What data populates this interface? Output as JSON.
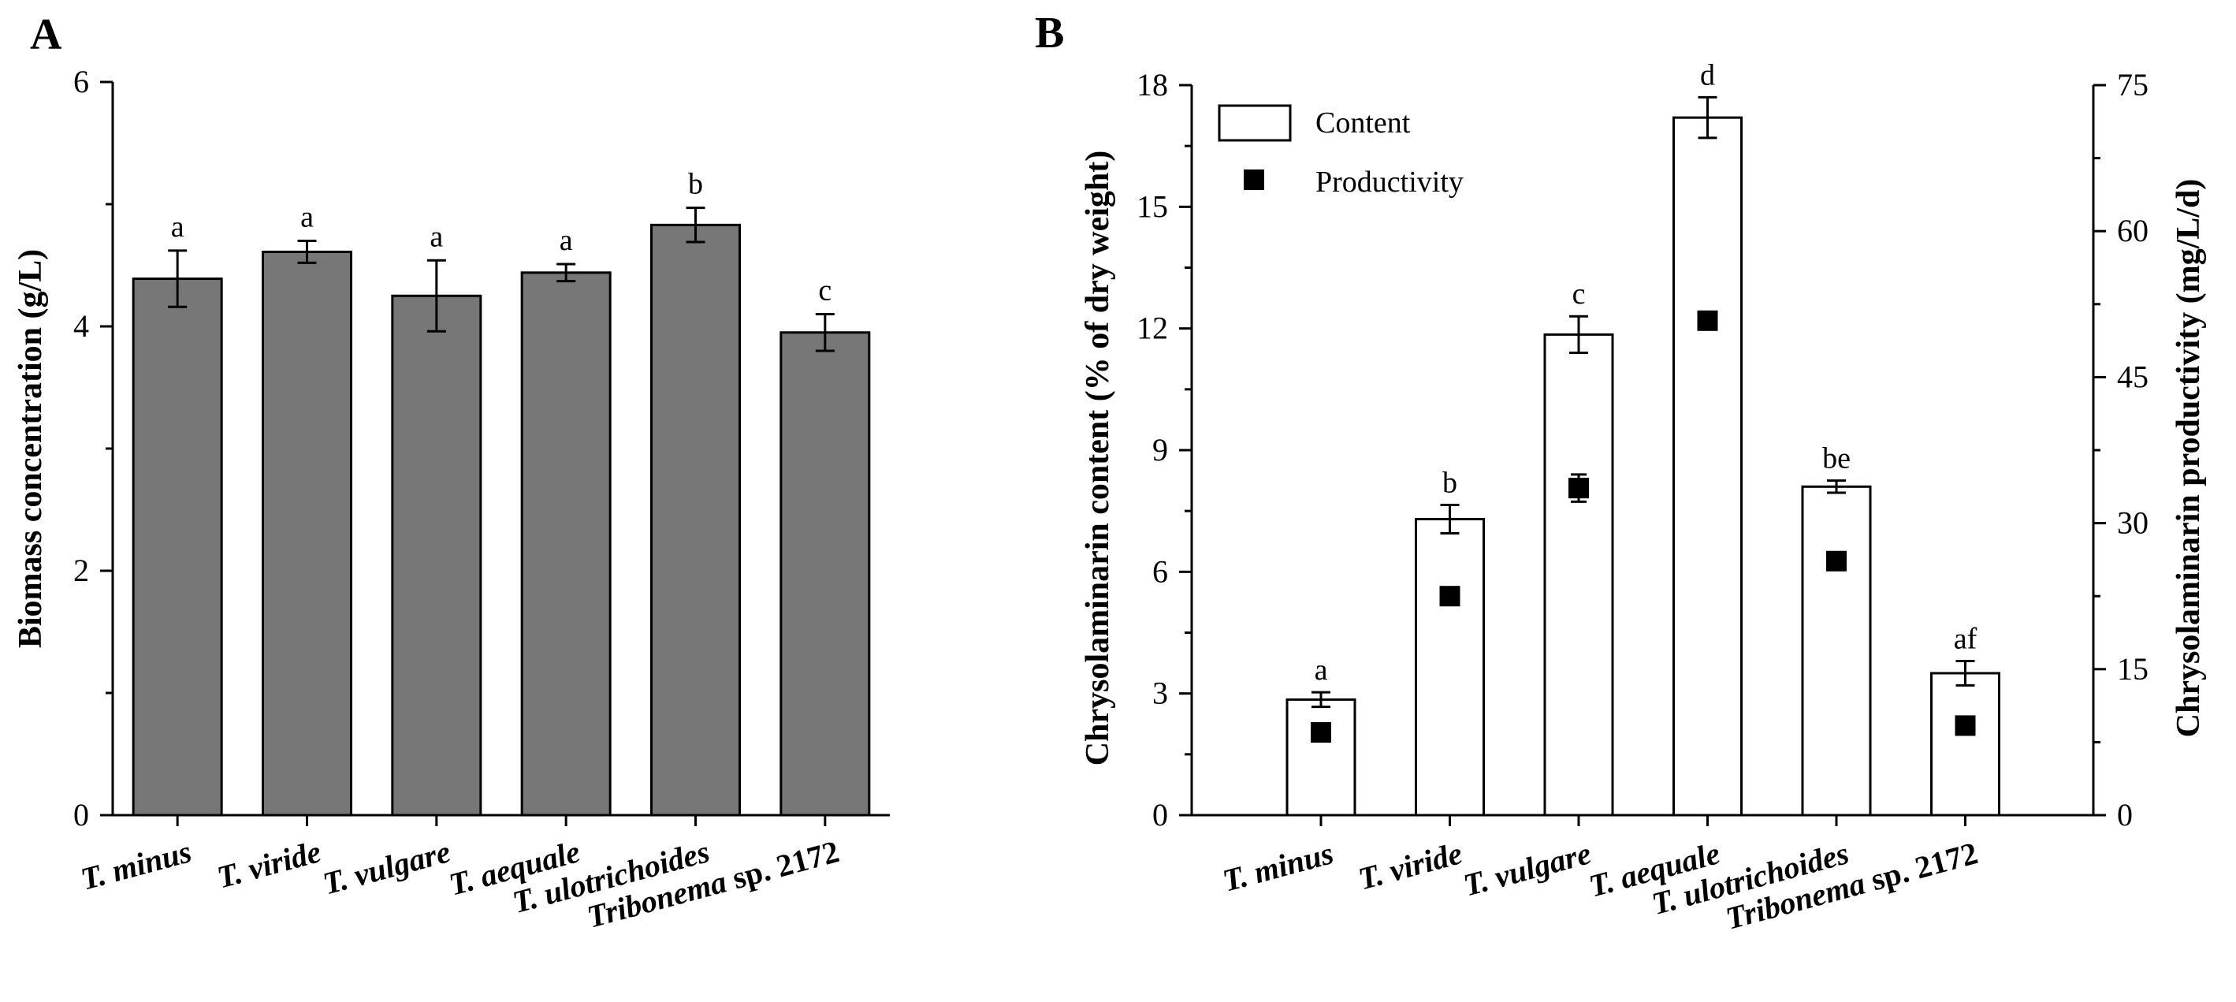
{
  "chart_data": [
    {
      "panel": "A",
      "type": "bar",
      "categories": [
        {
          "pre": "T. minus",
          "post": ""
        },
        {
          "pre": "T. viride",
          "post": ""
        },
        {
          "pre": "T. vulgare",
          "post": ""
        },
        {
          "pre": "T. aequale",
          "post": ""
        },
        {
          "pre": "T. ulotrichoides",
          "post": ""
        },
        {
          "pre": "Tribonema",
          "post": " sp. 2172"
        }
      ],
      "series": [
        {
          "name": "Biomass concentration",
          "values": [
            4.39,
            4.61,
            4.25,
            4.44,
            4.83,
            3.95
          ],
          "errors": [
            0.23,
            0.09,
            0.29,
            0.07,
            0.14,
            0.15
          ],
          "letters": [
            "a",
            "a",
            "a",
            "a",
            "b",
            "c"
          ]
        }
      ],
      "ylabel": "Biomass concentration (g/L)",
      "ylim": [
        0,
        6
      ],
      "yticks": [
        0,
        2,
        4,
        6
      ],
      "colors": {
        "bar": "#777777",
        "edge": "#000000"
      }
    },
    {
      "panel": "B",
      "type": "bar",
      "categories": [
        {
          "pre": "T. minus",
          "post": ""
        },
        {
          "pre": "T. viride",
          "post": ""
        },
        {
          "pre": "T. vulgare",
          "post": ""
        },
        {
          "pre": "T. aequale",
          "post": ""
        },
        {
          "pre": "T. ulotrichoides",
          "post": ""
        },
        {
          "pre": "Tribonema",
          "post": " sp. 2172"
        }
      ],
      "series": [
        {
          "name": "Content",
          "axis": "left",
          "values": [
            2.85,
            7.3,
            11.85,
            17.2,
            8.1,
            3.5
          ],
          "errors": [
            0.18,
            0.35,
            0.45,
            0.5,
            0.15,
            0.3
          ],
          "letters": [
            "a",
            "b",
            "c",
            "d",
            "be",
            "af"
          ]
        },
        {
          "name": "Productivity",
          "axis": "right",
          "type": "scatter",
          "values": [
            8.5,
            22.5,
            33.6,
            50.8,
            26.1,
            9.2
          ],
          "errors": [
            0.5,
            0.5,
            1.4,
            0.5,
            0.5,
            0.5
          ]
        }
      ],
      "ylabel": "Chrysolaminarin content (% of dry weight)",
      "ylabel_right": "Chrysolaminarin productivity (mg/L/d)",
      "ylim": [
        0,
        18
      ],
      "yticks": [
        0,
        3,
        6,
        9,
        12,
        15,
        18
      ],
      "ylim_right": [
        0,
        75
      ],
      "yticks_right": [
        0,
        15,
        30,
        45,
        60,
        75
      ],
      "legend": [
        "Content",
        "Productivity"
      ],
      "legend_position": "top-left",
      "colors": {
        "bar": "#ffffff",
        "edge": "#000000",
        "marker": "#000000"
      }
    }
  ]
}
